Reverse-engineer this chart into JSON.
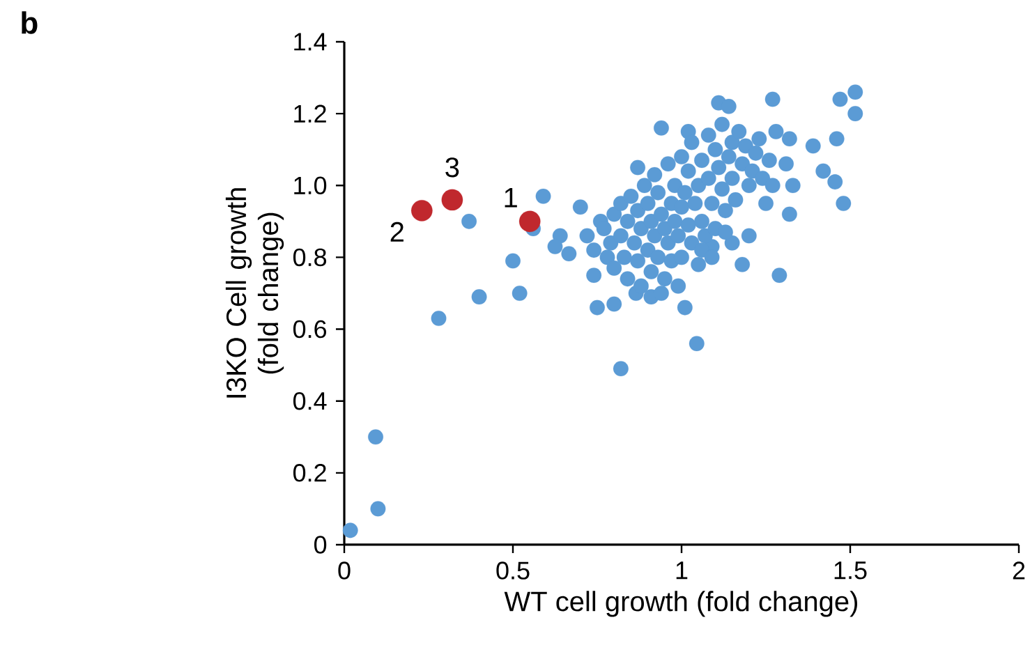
{
  "chart_data": {
    "type": "scatter",
    "title": "**b**",
    "xlabel": "WT cell growth (fold change)",
    "ylabel": "I3KO Cell growth (fold change)",
    "xlim": [
      0,
      2
    ],
    "ylim": [
      0,
      1.4
    ],
    "xticks": [
      0,
      0.5,
      1,
      1.5,
      2
    ],
    "yticks": [
      0,
      0.2,
      0.4,
      0.6,
      0.8,
      {
        "value": 1,
        "label": "1.0"
      },
      1.2,
      1.4
    ],
    "marker": "circle",
    "series": [
      {
        "color": "#5b9bd5",
        "x": [
          0.018,
          0.1,
          0.093,
          0.28,
          0.4,
          0.52,
          0.5,
          0.37,
          0.59,
          0.56,
          0.7,
          0.64,
          0.625,
          0.666,
          0.82,
          0.75,
          0.8,
          0.94,
          1.11,
          1.14,
          1.27,
          1.47,
          1.515,
          1.515,
          1.39,
          1.46,
          1.42,
          1.455,
          1.48,
          1.32,
          1.25,
          1.32,
          1.28,
          1.31,
          1.33,
          1.29,
          1.18,
          1.01,
          1.045,
          0.87,
          1.02,
          0.74,
          0.865,
          0.91,
          1.2,
          1.15,
          1.09,
          0.72,
          0.74,
          0.76,
          0.78,
          0.77,
          0.79,
          0.8,
          0.8,
          0.82,
          0.82,
          0.83,
          0.84,
          0.84,
          0.85,
          0.86,
          0.87,
          0.87,
          0.88,
          0.88,
          0.89,
          0.9,
          0.9,
          0.91,
          0.91,
          0.92,
          0.92,
          0.93,
          0.93,
          0.94,
          0.95,
          0.95,
          0.96,
          0.96,
          0.97,
          0.97,
          0.98,
          0.98,
          0.99,
          1.0,
          1.0,
          1.0,
          1.01,
          1.02,
          1.02,
          1.03,
          1.03,
          1.04,
          1.05,
          1.05,
          1.06,
          1.06,
          1.07,
          1.08,
          1.08,
          1.09,
          1.1,
          1.1,
          1.11,
          1.12,
          1.12,
          1.13,
          1.14,
          1.15,
          1.15,
          1.16,
          1.17,
          1.18,
          1.19,
          1.2,
          1.21,
          1.22,
          1.23,
          1.24,
          1.26,
          1.27,
          1.06,
          0.99,
          0.94,
          1.09,
          1.13
        ],
        "values": [
          0.04,
          0.1,
          0.3,
          0.63,
          0.69,
          0.7,
          0.79,
          0.9,
          0.97,
          0.88,
          0.94,
          0.86,
          0.83,
          0.81,
          0.49,
          0.66,
          0.67,
          1.16,
          1.23,
          1.22,
          1.24,
          1.24,
          1.26,
          1.2,
          1.11,
          1.13,
          1.04,
          1.01,
          0.95,
          0.92,
          0.95,
          1.13,
          1.15,
          1.06,
          1.0,
          0.75,
          0.78,
          0.66,
          0.56,
          1.05,
          1.15,
          0.75,
          0.7,
          0.69,
          0.86,
          0.84,
          0.83,
          0.86,
          0.82,
          0.9,
          0.8,
          0.88,
          0.84,
          0.92,
          0.77,
          0.95,
          0.86,
          0.8,
          0.9,
          0.74,
          0.97,
          0.84,
          0.79,
          0.93,
          0.88,
          0.72,
          1.0,
          0.82,
          0.95,
          0.76,
          0.9,
          0.86,
          1.03,
          0.98,
          0.8,
          0.92,
          0.88,
          0.74,
          1.06,
          0.84,
          0.95,
          0.79,
          1.0,
          0.9,
          0.86,
          1.08,
          0.94,
          0.8,
          0.98,
          0.89,
          1.04,
          0.84,
          1.12,
          0.95,
          1.0,
          0.78,
          1.07,
          0.9,
          0.86,
          1.02,
          1.14,
          0.95,
          1.1,
          0.88,
          1.05,
          0.99,
          1.17,
          0.93,
          1.08,
          1.12,
          1.02,
          0.96,
          1.15,
          1.06,
          1.11,
          1.0,
          1.04,
          1.09,
          1.13,
          1.02,
          1.07,
          1.0,
          0.82,
          0.72,
          0.7,
          0.8,
          0.87
        ]
      },
      {
        "color": "#c0282d",
        "x": [
          0.55,
          0.23,
          0.32
        ],
        "values": [
          0.9,
          0.93,
          0.96
        ]
      }
    ],
    "annotations": [
      {
        "text": "1",
        "x": 0.55,
        "y": 0.9
      },
      {
        "text": "2",
        "x": 0.23,
        "y": 0.93
      },
      {
        "text": "3",
        "x": 0.32,
        "y": 0.96
      }
    ]
  }
}
